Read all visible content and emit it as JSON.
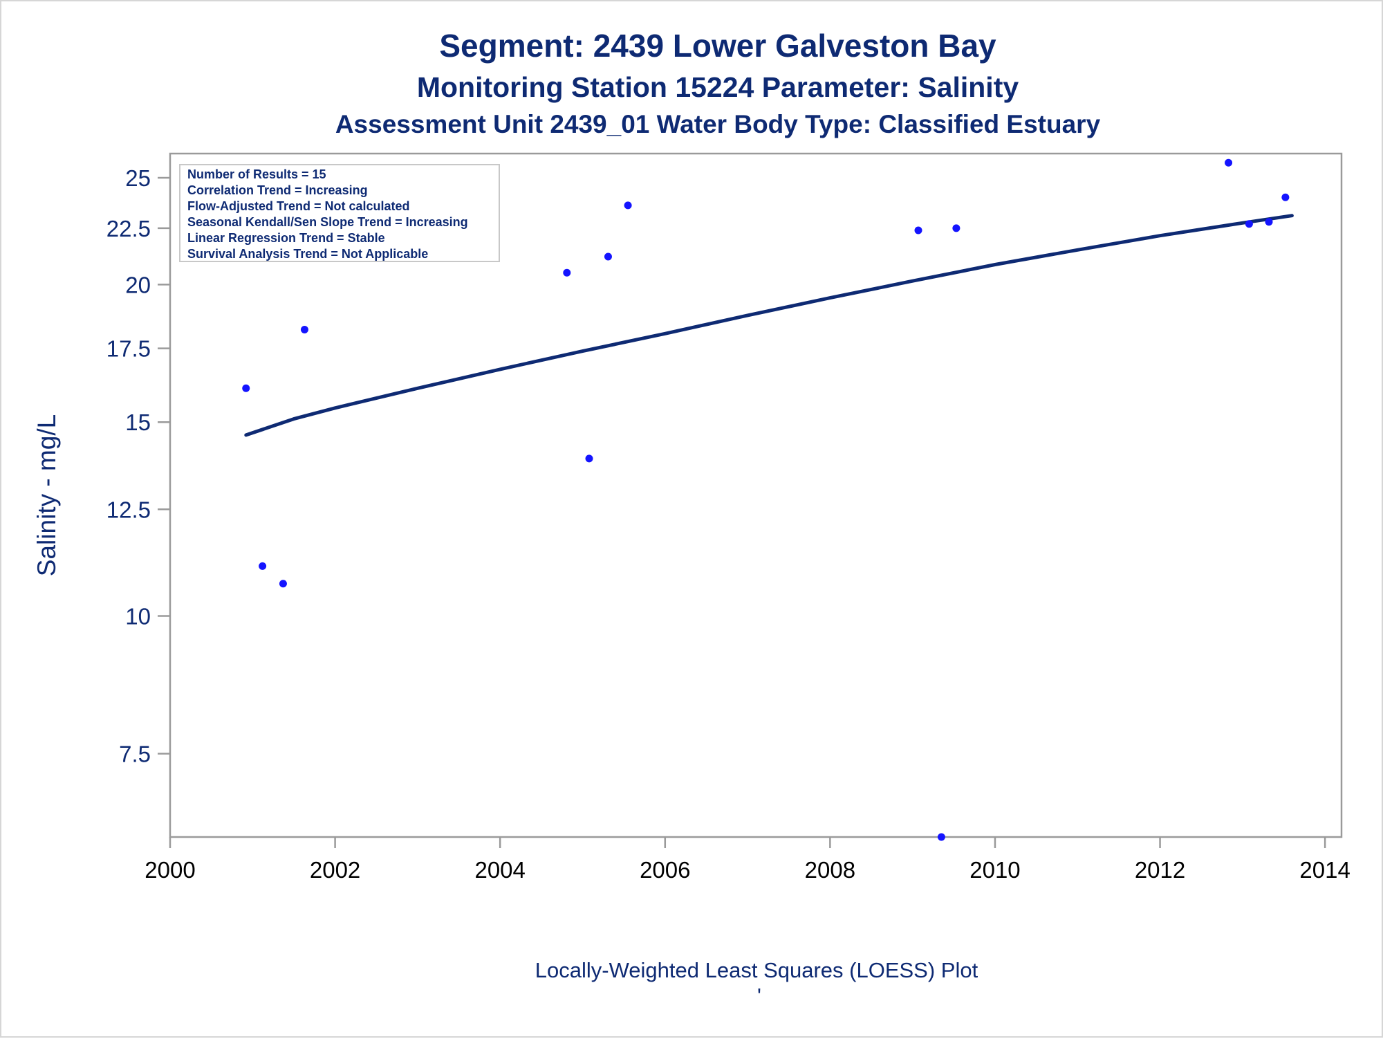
{
  "titles": {
    "line1": "Segment: 2439  Lower Galveston Bay",
    "line2": "Monitoring Station 15224 Parameter: Salinity",
    "line3": "Assessment Unit 2439_01   Water Body Type: Classified Estuary"
  },
  "stats_box": [
    "Number of Results = 15",
    "Correlation Trend = Increasing",
    "Flow-Adjusted Trend = Not calculated",
    "Seasonal Kendall/Sen Slope Trend = Increasing",
    "Linear Regression Trend = Stable",
    "Survival Analysis Trend = Not Applicable"
  ],
  "footnote": "Locally-Weighted Least Squares (LOESS) Plot",
  "footnote_mark": "'",
  "colors": {
    "text": "#0e2a73",
    "points": "#1414ff",
    "trend_line": "#0e2a73",
    "axis": "#9a9a9a"
  },
  "chart_data": {
    "type": "scatter",
    "title": "Segment: 2439  Lower Galveston Bay",
    "xlabel": "",
    "ylabel": "Salinity - mg/L",
    "y_scale": "log",
    "xlim": [
      2000,
      2014.2
    ],
    "ylim": [
      6.3,
      26.3
    ],
    "x_ticks": [
      2000,
      2002,
      2004,
      2006,
      2008,
      2010,
      2012,
      2014
    ],
    "x_tick_labels": [
      "2000",
      "2002",
      "2004",
      "2006",
      "2008",
      "2010",
      "2012",
      "2014"
    ],
    "y_ticks": [
      7.5,
      10,
      12.5,
      15,
      17.5,
      20,
      22.5,
      25
    ],
    "y_tick_labels": [
      "7.5",
      "10",
      "12.5",
      "15",
      "17.5",
      "20",
      "22.5",
      "25"
    ],
    "grid": false,
    "series": [
      {
        "kind": "points",
        "x": [
          2000.92,
          2001.12,
          2001.37,
          2001.63,
          2004.81,
          2005.08,
          2005.31,
          2005.55,
          2009.07,
          2009.35,
          2009.53,
          2012.83,
          2013.08,
          2013.32,
          2013.52
        ],
        "y": [
          16.1,
          11.1,
          10.7,
          18.2,
          20.5,
          13.9,
          21.2,
          23.6,
          22.4,
          6.3,
          22.5,
          25.8,
          22.7,
          22.8,
          24.0
        ]
      },
      {
        "kind": "line",
        "x": [
          2000.92,
          2001.5,
          2002,
          2003,
          2004,
          2005,
          2006,
          2007,
          2008,
          2009,
          2010,
          2011,
          2012,
          2013,
          2013.6
        ],
        "y": [
          14.6,
          15.1,
          15.45,
          16.1,
          16.75,
          17.4,
          18.05,
          18.75,
          19.45,
          20.15,
          20.85,
          21.5,
          22.15,
          22.75,
          23.1
        ]
      }
    ]
  }
}
